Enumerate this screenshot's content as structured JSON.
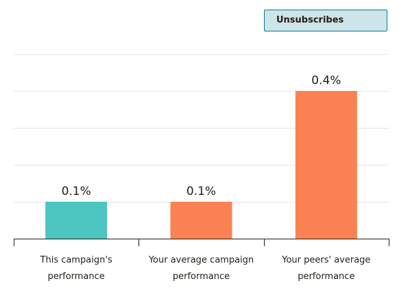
{
  "selector": {
    "label": "Unsubscribes"
  },
  "colors": {
    "campaign": "#4dc5c1",
    "average": "#fa8252",
    "grid": "#e5e5e5",
    "axis": "#241c15"
  },
  "chart_data": {
    "type": "bar",
    "title": "",
    "xlabel": "",
    "ylabel": "",
    "grid": true,
    "categories": [
      [
        "This campaign's",
        "performance"
      ],
      [
        "Your average campaign",
        "performance"
      ],
      [
        "Your peers' average",
        "performance"
      ]
    ],
    "values": [
      0.1,
      0.1,
      0.4
    ],
    "value_labels": [
      "0.1%",
      "0.1%",
      "0.4%"
    ],
    "bar_colors": [
      "#4dc5c1",
      "#fa8252",
      "#fa8252"
    ],
    "ylim": [
      0,
      0.5
    ]
  }
}
